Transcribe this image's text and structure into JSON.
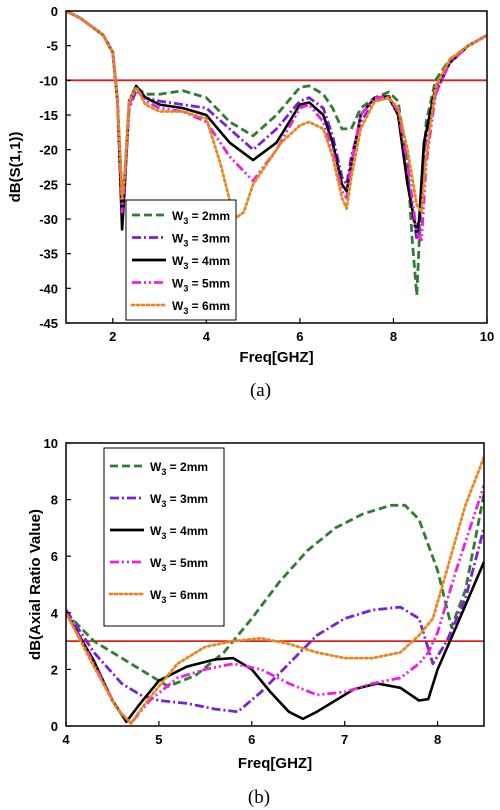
{
  "chart_data": [
    {
      "type": "line",
      "caption": "(a)",
      "xlabel": "Freq[GHZ]",
      "ylabel": "dB(S(1,1))",
      "xlim": [
        1,
        10
      ],
      "ylim": [
        -45,
        0
      ],
      "xticks": [
        2,
        4,
        6,
        8,
        10
      ],
      "yticks": [
        0,
        -5,
        -10,
        -15,
        -20,
        -25,
        -30,
        -35,
        -40,
        -45
      ],
      "grid": false,
      "legend_position": "bottom-left",
      "reference_line": {
        "y": -10,
        "color": "#e0201b"
      },
      "series": [
        {
          "name": "W3 = 2mm",
          "label_main": "W",
          "label_sub": "3",
          "label_rest": " = 2mm",
          "color": "#2e7d32",
          "dash": "dash",
          "x": [
            1.0,
            1.3,
            1.6,
            1.8,
            2.0,
            2.1,
            2.2,
            2.25,
            2.35,
            2.5,
            2.7,
            3.0,
            3.5,
            4.0,
            4.5,
            5.0,
            5.5,
            6.0,
            6.2,
            6.5,
            6.7,
            6.9,
            7.1,
            7.3,
            7.6,
            7.9,
            8.1,
            8.3,
            8.4,
            8.5,
            8.6,
            8.7,
            8.9,
            9.2,
            9.6,
            10.0
          ],
          "y": [
            0,
            -1,
            -2.5,
            -3.5,
            -6,
            -13,
            -27,
            -24,
            -13,
            -11,
            -12,
            -12,
            -11.5,
            -12.5,
            -16,
            -18,
            -15,
            -11,
            -10.8,
            -12,
            -14,
            -17,
            -17,
            -14,
            -12.5,
            -11.7,
            -13,
            -22,
            -33,
            -41,
            -26,
            -16,
            -10,
            -7,
            -5,
            -3.5
          ]
        },
        {
          "name": "W3 = 3mm",
          "label_main": "W",
          "label_sub": "3",
          "label_rest": " = 3mm",
          "color": "#7e1fd8",
          "dash": "dashdot",
          "x": [
            1.0,
            1.3,
            1.6,
            1.8,
            2.0,
            2.1,
            2.2,
            2.25,
            2.35,
            2.5,
            2.7,
            3.0,
            3.5,
            4.0,
            4.5,
            5.0,
            5.5,
            6.0,
            6.2,
            6.5,
            6.7,
            6.9,
            7.0,
            7.1,
            7.3,
            7.6,
            7.9,
            8.1,
            8.3,
            8.5,
            8.55,
            8.65,
            8.9,
            9.2,
            9.6,
            10.0
          ],
          "y": [
            0,
            -1,
            -2.5,
            -3.5,
            -6,
            -13,
            -28,
            -25,
            -14,
            -11.5,
            -12.5,
            -13,
            -13.5,
            -14,
            -17,
            -20,
            -17,
            -13,
            -12.5,
            -14,
            -18,
            -24,
            -25,
            -21,
            -16,
            -13,
            -12.5,
            -15,
            -24,
            -33,
            -31,
            -20,
            -12,
            -7.5,
            -5,
            -3.5
          ]
        },
        {
          "name": "W3 = 4mm",
          "label_main": "W",
          "label_sub": "3",
          "label_rest": " = 4mm",
          "color": "#000000",
          "dash": "solid",
          "x": [
            1.0,
            1.3,
            1.6,
            1.8,
            2.0,
            2.1,
            2.2,
            2.25,
            2.35,
            2.5,
            2.7,
            3.0,
            3.5,
            4.0,
            4.5,
            5.0,
            5.5,
            6.0,
            6.2,
            6.5,
            6.7,
            6.9,
            7.0,
            7.1,
            7.3,
            7.6,
            7.9,
            8.1,
            8.3,
            8.5,
            8.55,
            8.65,
            8.9,
            9.2,
            9.6,
            10.0
          ],
          "y": [
            0,
            -1,
            -2.5,
            -3.5,
            -6,
            -13,
            -31.5,
            -26,
            -13,
            -10.8,
            -12.5,
            -13.5,
            -14,
            -15,
            -19,
            -21.5,
            -19,
            -13.5,
            -13.2,
            -15,
            -19,
            -25,
            -26,
            -22,
            -15,
            -12.5,
            -12.3,
            -15,
            -25,
            -32,
            -30,
            -19,
            -11,
            -7.5,
            -5,
            -3.5
          ]
        },
        {
          "name": "W3 = 5mm",
          "label_main": "W",
          "label_sub": "3",
          "label_rest": " = 5mm",
          "color": "#ee1fe0",
          "dash": "dashdotdot",
          "x": [
            1.0,
            1.3,
            1.6,
            1.8,
            2.0,
            2.1,
            2.2,
            2.25,
            2.35,
            2.5,
            2.7,
            3.0,
            3.5,
            4.0,
            4.5,
            5.0,
            5.5,
            6.0,
            6.2,
            6.5,
            6.7,
            6.9,
            7.0,
            7.1,
            7.3,
            7.6,
            7.9,
            8.1,
            8.3,
            8.5,
            8.6,
            8.7,
            8.9,
            9.2,
            9.6,
            10.0
          ],
          "y": [
            0,
            -1,
            -2.5,
            -3.5,
            -6,
            -13,
            -29,
            -25,
            -13.5,
            -11,
            -13,
            -14,
            -14.5,
            -16,
            -21,
            -24.5,
            -20,
            -14,
            -13.5,
            -16,
            -20,
            -26,
            -27,
            -22,
            -15,
            -12.5,
            -12.4,
            -14.5,
            -22,
            -32,
            -33,
            -22,
            -12,
            -7.5,
            -5,
            -3.5
          ]
        },
        {
          "name": "W3 = 6mm",
          "label_main": "W",
          "label_sub": "3",
          "label_rest": " = 6mm",
          "color": "#e8871e",
          "dash": "dot",
          "x": [
            1.0,
            1.3,
            1.6,
            1.8,
            2.0,
            2.1,
            2.2,
            2.25,
            2.35,
            2.5,
            2.7,
            3.0,
            3.5,
            4.0,
            4.3,
            4.6,
            4.8,
            5.0,
            5.3,
            5.6,
            6.0,
            6.2,
            6.5,
            6.7,
            6.9,
            7.0,
            7.1,
            7.3,
            7.6,
            7.9,
            8.1,
            8.3,
            8.5,
            8.6,
            8.7,
            8.9,
            9.2,
            9.6,
            10.0
          ],
          "y": [
            0,
            -1,
            -2.5,
            -3.5,
            -6,
            -13,
            -27,
            -24,
            -13,
            -11,
            -13.5,
            -14.5,
            -14.5,
            -15.5,
            -22,
            -30,
            -29,
            -25,
            -22,
            -19,
            -16.5,
            -16,
            -17,
            -21,
            -27,
            -28.5,
            -24,
            -17,
            -13,
            -12.5,
            -14,
            -20,
            -28,
            -29,
            -21,
            -11,
            -7,
            -5,
            -3.5
          ]
        }
      ]
    },
    {
      "type": "line",
      "caption": "(b)",
      "xlabel": "Freq[GHZ]",
      "ylabel": "dB(Axial Ratio Value)",
      "xlim": [
        4,
        8.5
      ],
      "ylim": [
        0,
        10
      ],
      "xticks": [
        4,
        5,
        6,
        7,
        8
      ],
      "yticks": [
        0,
        2,
        4,
        6,
        8,
        10
      ],
      "grid": false,
      "legend_position": "top-left",
      "reference_line": {
        "y": 3,
        "color": "#e0201b"
      },
      "series": [
        {
          "name": "W3 = 2mm",
          "label_main": "W",
          "label_sub": "3",
          "label_rest": " = 2mm",
          "color": "#2e7d32",
          "dash": "dash",
          "x": [
            4.0,
            4.3,
            4.6,
            4.9,
            5.1,
            5.4,
            5.7,
            6.0,
            6.3,
            6.6,
            6.9,
            7.2,
            7.5,
            7.65,
            7.8,
            8.0,
            8.15,
            8.3,
            8.5
          ],
          "y": [
            4.0,
            3.0,
            2.4,
            1.8,
            1.4,
            1.8,
            2.6,
            3.8,
            5.1,
            6.2,
            7.0,
            7.5,
            7.8,
            7.8,
            7.3,
            5.5,
            3.5,
            4.8,
            8.2
          ]
        },
        {
          "name": "W3 = 3mm",
          "label_main": "W",
          "label_sub": "3",
          "label_rest": " = 3mm",
          "color": "#7e1fd8",
          "dash": "dashdot",
          "x": [
            4.0,
            4.3,
            4.6,
            4.8,
            5.0,
            5.3,
            5.6,
            5.85,
            6.1,
            6.4,
            6.7,
            7.0,
            7.3,
            7.6,
            7.8,
            7.95,
            8.1,
            8.3,
            8.5
          ],
          "y": [
            4.1,
            2.6,
            1.5,
            1.1,
            0.9,
            0.8,
            0.6,
            0.5,
            1.2,
            2.2,
            3.2,
            3.8,
            4.1,
            4.2,
            3.8,
            2.2,
            3.0,
            4.5,
            7.0
          ]
        },
        {
          "name": "W3 = 4mm",
          "label_main": "W",
          "label_sub": "3",
          "label_rest": " = 4mm",
          "color": "#000000",
          "dash": "solid",
          "x": [
            4.0,
            4.3,
            4.5,
            4.65,
            4.8,
            5.0,
            5.3,
            5.6,
            5.8,
            6.0,
            6.2,
            6.4,
            6.55,
            6.7,
            6.9,
            7.1,
            7.35,
            7.6,
            7.8,
            7.9,
            8.0,
            8.2,
            8.5
          ],
          "y": [
            4.0,
            2.3,
            0.9,
            0.15,
            0.8,
            1.6,
            2.1,
            2.35,
            2.4,
            2.0,
            1.2,
            0.5,
            0.25,
            0.5,
            0.9,
            1.3,
            1.5,
            1.35,
            0.9,
            0.95,
            2.0,
            3.5,
            5.8
          ]
        },
        {
          "name": "W3 = 5mm",
          "label_main": "W",
          "label_sub": "3",
          "label_rest": " = 5mm",
          "color": "#ee1fe0",
          "dash": "dashdotdot",
          "x": [
            4.0,
            4.3,
            4.55,
            4.7,
            4.9,
            5.2,
            5.5,
            5.8,
            6.1,
            6.4,
            6.7,
            7.0,
            7.3,
            7.6,
            7.8,
            7.9,
            8.0,
            8.2,
            8.5
          ],
          "y": [
            4.0,
            2.2,
            0.6,
            0.1,
            0.9,
            1.7,
            2.0,
            2.2,
            2.0,
            1.5,
            1.1,
            1.2,
            1.5,
            1.7,
            2.2,
            2.6,
            3.3,
            5.5,
            8.5
          ]
        },
        {
          "name": "W3 = 6mm",
          "label_main": "W",
          "label_sub": "3",
          "label_rest": " = 6mm",
          "color": "#e8871e",
          "dash": "dot",
          "x": [
            4.0,
            4.3,
            4.55,
            4.7,
            4.9,
            5.2,
            5.5,
            5.8,
            6.1,
            6.4,
            6.7,
            7.0,
            7.3,
            7.6,
            7.8,
            7.95,
            8.1,
            8.3,
            8.5
          ],
          "y": [
            4.0,
            2.1,
            0.6,
            0.1,
            1.0,
            2.2,
            2.8,
            3.0,
            3.1,
            2.9,
            2.6,
            2.4,
            2.4,
            2.6,
            3.2,
            3.8,
            5.5,
            7.8,
            9.5
          ]
        }
      ]
    }
  ]
}
